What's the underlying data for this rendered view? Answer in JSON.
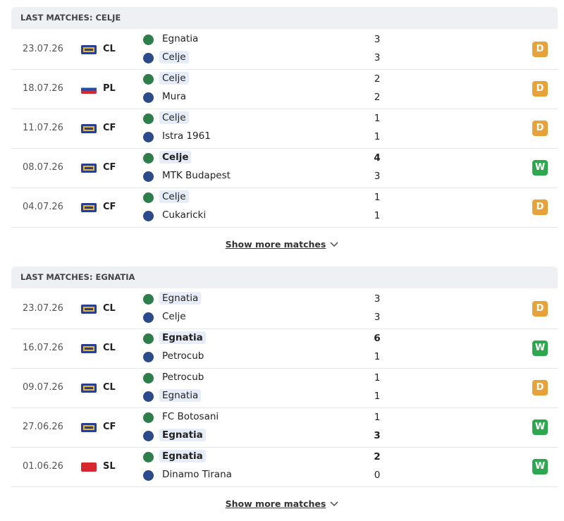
{
  "sections": [
    {
      "title": "LAST MATCHES: CELJE",
      "more": "Show more matches",
      "matches": [
        {
          "date": "23.07.26",
          "flag": "eu",
          "competition": "CL",
          "home": {
            "name": "Egnatia",
            "score": 3,
            "highlight": false,
            "bold": false
          },
          "away": {
            "name": "Celje",
            "score": 3,
            "highlight": true,
            "bold": false
          },
          "result": "D"
        },
        {
          "date": "18.07.26",
          "flag": "si",
          "competition": "PL",
          "home": {
            "name": "Celje",
            "score": 2,
            "highlight": true,
            "bold": false
          },
          "away": {
            "name": "Mura",
            "score": 2,
            "highlight": false,
            "bold": false
          },
          "result": "D"
        },
        {
          "date": "11.07.26",
          "flag": "eu",
          "competition": "CF",
          "home": {
            "name": "Celje",
            "score": 1,
            "highlight": true,
            "bold": false
          },
          "away": {
            "name": "Istra 1961",
            "score": 1,
            "highlight": false,
            "bold": false
          },
          "result": "D"
        },
        {
          "date": "08.07.26",
          "flag": "eu",
          "competition": "CF",
          "home": {
            "name": "Celje",
            "score": 4,
            "highlight": true,
            "bold": true
          },
          "away": {
            "name": "MTK Budapest",
            "score": 3,
            "highlight": false,
            "bold": false
          },
          "result": "W"
        },
        {
          "date": "04.07.26",
          "flag": "eu",
          "competition": "CF",
          "home": {
            "name": "Celje",
            "score": 1,
            "highlight": true,
            "bold": false
          },
          "away": {
            "name": "Cukaricki",
            "score": 1,
            "highlight": false,
            "bold": false
          },
          "result": "D"
        }
      ]
    },
    {
      "title": "LAST MATCHES: EGNATIA",
      "more": "Show more matches",
      "matches": [
        {
          "date": "23.07.26",
          "flag": "eu",
          "competition": "CL",
          "home": {
            "name": "Egnatia",
            "score": 3,
            "highlight": true,
            "bold": false
          },
          "away": {
            "name": "Celje",
            "score": 3,
            "highlight": false,
            "bold": false
          },
          "result": "D"
        },
        {
          "date": "16.07.26",
          "flag": "eu",
          "competition": "CL",
          "home": {
            "name": "Egnatia",
            "score": 6,
            "highlight": true,
            "bold": true
          },
          "away": {
            "name": "Petrocub",
            "score": 1,
            "highlight": false,
            "bold": false
          },
          "result": "W"
        },
        {
          "date": "09.07.26",
          "flag": "eu",
          "competition": "CL",
          "home": {
            "name": "Petrocub",
            "score": 1,
            "highlight": false,
            "bold": false
          },
          "away": {
            "name": "Egnatia",
            "score": 1,
            "highlight": true,
            "bold": false
          },
          "result": "D"
        },
        {
          "date": "27.06.26",
          "flag": "eu",
          "competition": "CF",
          "home": {
            "name": "FC Botosani",
            "score": 1,
            "highlight": false,
            "bold": false
          },
          "away": {
            "name": "Egnatia",
            "score": 3,
            "highlight": true,
            "bold": true
          },
          "result": "W"
        },
        {
          "date": "01.06.26",
          "flag": "al",
          "competition": "SL",
          "home": {
            "name": "Egnatia",
            "score": 2,
            "highlight": true,
            "bold": true
          },
          "away": {
            "name": "Dinamo Tirana",
            "score": 0,
            "highlight": false,
            "bold": false
          },
          "result": "W"
        }
      ]
    }
  ]
}
